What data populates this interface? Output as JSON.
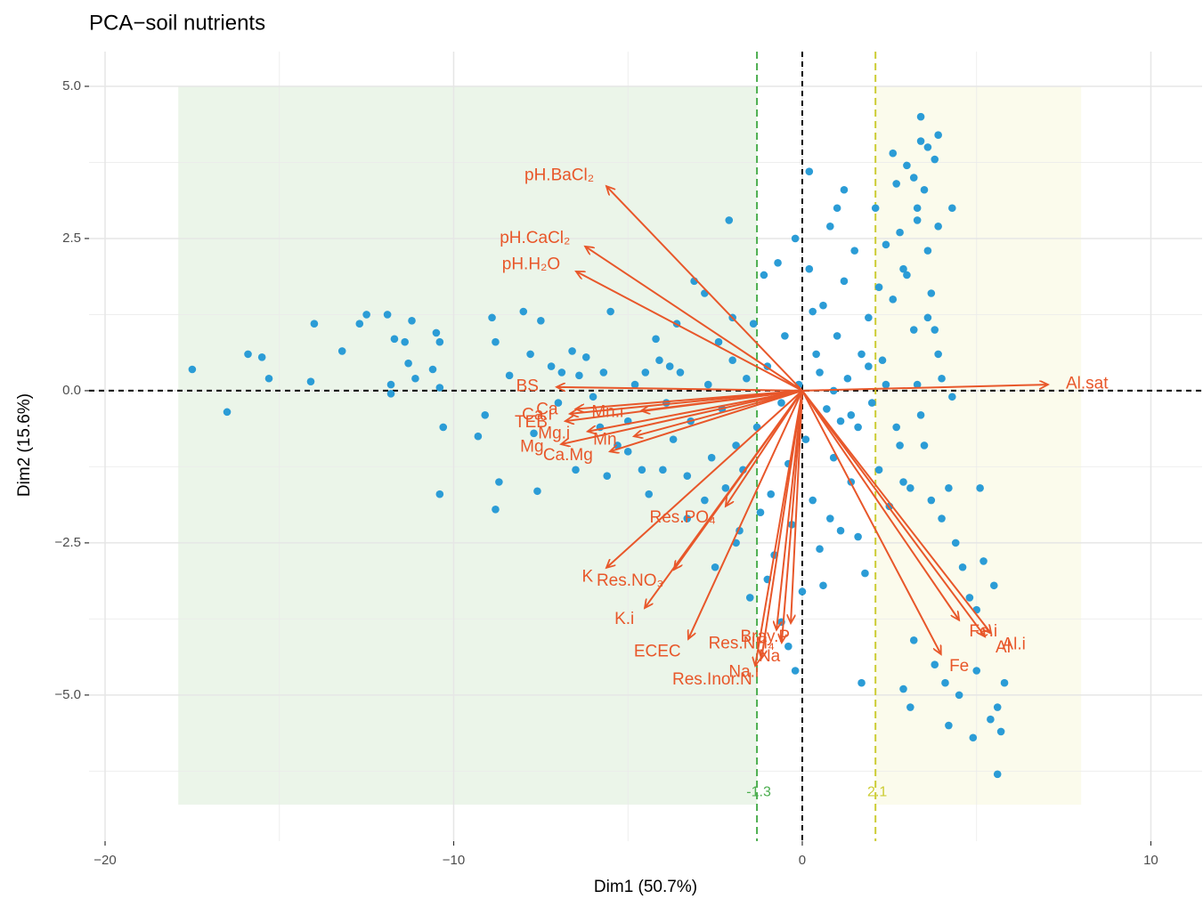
{
  "chart_data": {
    "type": "pca-biplot",
    "title": "PCA−soil nutrients",
    "x_label": "Dim1 (50.7%)",
    "y_label": "Dim2 (15.6%)",
    "xlim": [
      -20.46,
      11.47
    ],
    "ylim": [
      -7.4,
      5.57
    ],
    "xticks": [
      {
        "value": -20,
        "label": "−20"
      },
      {
        "value": -10,
        "label": "−10"
      },
      0,
      10
    ],
    "yticks": [
      {
        "value": 5,
        "label": "5.0"
      },
      {
        "value": 2.5,
        "label": "2.5"
      },
      {
        "value": 0,
        "label": "0.0"
      },
      {
        "value": -2.5,
        "label": "−2.5"
      },
      {
        "value": -5,
        "label": "−5.0"
      }
    ],
    "xminor": [
      -15,
      -5,
      5
    ],
    "yminor": [
      3.75,
      1.25,
      -1.25,
      -3.75,
      -6.25
    ],
    "grid": true,
    "regions": [
      {
        "xmin": -17.9,
        "xmax": -1.3,
        "ymin": -6.8,
        "ymax": 5.0,
        "color": "#ebf5e9"
      },
      {
        "xmin": 2.1,
        "xmax": 8.0,
        "ymin": -6.8,
        "ymax": 5.0,
        "color": "#fbfbec"
      }
    ],
    "vlines": [
      {
        "x": -1.3,
        "label": "-1.3",
        "color": "#4cae4f"
      },
      {
        "x": 2.1,
        "label": "2.1",
        "color": "#cccc33"
      }
    ],
    "points": {
      "color": "#2b9cd6",
      "x": [
        -17.5,
        -16.5,
        -15.9,
        -15.5,
        -15.3,
        -14.0,
        -14.1,
        -13.2,
        -12.7,
        -12.5,
        -11.9,
        -11.7,
        -11.4,
        -11.2,
        -11.1,
        -11.8,
        -11.8,
        -11.3,
        -10.6,
        -10.5,
        -10.4,
        -10.4,
        -10.3,
        -10.4,
        -9.3,
        -9.1,
        -8.8,
        -8.7,
        -8.8,
        -8.9,
        -8.4,
        -8.0,
        -7.8,
        -7.5,
        -7.6,
        -7.7,
        -7.2,
        -7.0,
        -6.9,
        -6.6,
        -6.4,
        -6.2,
        -6.0,
        -5.7,
        -5.5,
        -5.8,
        -5.3,
        -5.0,
        -5.0,
        -4.8,
        -4.5,
        -4.6,
        -4.4,
        -4.2,
        -4.1,
        -3.9,
        -3.7,
        -3.5,
        -3.3,
        -3.2,
        -3.1,
        -2.8,
        -2.7,
        -2.6,
        -2.4,
        -2.3,
        -2.2,
        -2.1,
        -2.0,
        -1.9,
        -1.8,
        -1.7,
        -1.6,
        -1.5,
        -1.4,
        -1.3,
        -1.2,
        -1.1,
        -1.0,
        -0.9,
        -0.8,
        -0.7,
        -0.6,
        -0.5,
        -0.4,
        -0.3,
        -0.2,
        -0.1,
        0.1,
        0.2,
        0.3,
        0.4,
        0.5,
        0.6,
        0.7,
        0.8,
        0.9,
        1.0,
        1.1,
        1.2,
        1.3,
        1.4,
        1.5,
        1.6,
        1.7,
        1.8,
        1.9,
        2.0,
        2.1,
        2.2,
        2.3,
        2.4,
        2.5,
        2.6,
        2.7,
        2.8,
        2.9,
        3.0,
        3.1,
        3.2,
        3.3,
        3.4,
        3.4,
        3.5,
        3.6,
        3.6,
        3.7,
        3.7,
        3.8,
        3.9,
        3.9,
        3.5,
        4.0,
        4.2,
        4.4,
        4.6,
        4.8,
        5.0,
        5.2,
        5.5,
        4.3,
        5.1,
        4.1,
        4.5,
        4.9,
        5.0,
        5.6,
        5.7,
        5.6,
        5.8,
        3.8,
        3.2,
        2.9,
        3.1,
        1.7,
        5.4,
        4.2,
        2.9,
        1.4,
        0.6,
        -0.6,
        -0.4,
        0.0,
        -0.2,
        0.8,
        1.6,
        -3.3,
        -1.9,
        -2.5,
        -1.0,
        -2.0,
        -3.8,
        -6.5,
        -5.6,
        -4.0,
        -2.8,
        -3.6,
        0.2,
        1.2,
        0.3,
        2.2,
        1.0,
        2.6,
        3.2,
        3.3,
        2.8,
        3.0,
        3.6,
        3.9,
        3.8,
        4.0,
        4.3,
        3.3,
        2.4,
        1.9,
        0.9,
        0.5,
        1.1,
        2.7,
        3.4
      ],
      "y": [
        0.35,
        -0.35,
        0.6,
        0.55,
        0.2,
        1.1,
        0.15,
        0.65,
        1.1,
        1.25,
        1.25,
        0.85,
        0.8,
        1.15,
        0.2,
        0.1,
        -0.05,
        0.45,
        0.35,
        0.95,
        0.8,
        0.05,
        -0.6,
        -1.7,
        -0.75,
        -0.4,
        -1.95,
        -1.5,
        0.8,
        1.2,
        0.25,
        1.3,
        0.6,
        1.15,
        -1.65,
        -0.7,
        0.4,
        -0.2,
        0.3,
        0.65,
        0.25,
        0.55,
        -0.1,
        0.3,
        1.3,
        -0.6,
        -0.9,
        -1.0,
        -0.5,
        0.1,
        0.3,
        -1.3,
        -1.7,
        0.85,
        0.5,
        -0.2,
        -0.8,
        0.3,
        -1.4,
        -0.5,
        1.8,
        1.6,
        0.1,
        -1.1,
        0.8,
        -0.3,
        -1.6,
        2.8,
        0.5,
        -0.9,
        -2.3,
        -1.3,
        0.2,
        -3.4,
        1.1,
        -0.6,
        -2.0,
        1.9,
        0.4,
        -1.7,
        -2.7,
        2.1,
        -0.2,
        0.9,
        -1.2,
        -2.2,
        2.5,
        0.1,
        -0.8,
        2.0,
        -1.8,
        0.6,
        -2.6,
        1.4,
        -0.3,
        2.7,
        -1.1,
        0.9,
        -2.3,
        1.8,
        0.2,
        -1.5,
        2.3,
        -0.6,
        0.6,
        -3.0,
        1.2,
        -0.2,
        3.0,
        -1.3,
        0.5,
        2.4,
        -1.9,
        1.5,
        3.4,
        -0.9,
        2.0,
        3.7,
        -1.6,
        1.0,
        2.8,
        4.1,
        4.5,
        3.3,
        4.0,
        2.3,
        1.6,
        -1.8,
        3.8,
        4.2,
        2.7,
        -0.9,
        -2.1,
        -1.6,
        -2.5,
        -2.9,
        -3.4,
        -3.6,
        -2.8,
        -3.2,
        3.0,
        -1.6,
        -4.8,
        -5.0,
        -5.7,
        -4.6,
        -5.2,
        -5.6,
        -6.3,
        -4.8,
        -4.5,
        -4.1,
        -4.9,
        -5.2,
        -4.8,
        -5.4,
        -5.5,
        -1.5,
        -0.4,
        -3.2,
        -3.8,
        -4.2,
        -3.3,
        -4.6,
        -2.1,
        -2.4,
        -2.1,
        -2.5,
        -2.9,
        -3.1,
        1.2,
        0.4,
        -1.3,
        -1.4,
        -1.3,
        -1.8,
        1.1,
        3.6,
        3.3,
        1.3,
        1.7,
        3.0,
        3.9,
        3.5,
        3.0,
        2.6,
        1.9,
        1.2,
        0.6,
        1.0,
        0.2,
        -0.1,
        0.1,
        0.1,
        0.4,
        0.0,
        0.3,
        -0.5,
        -0.6,
        -0.4
      ]
    },
    "arrows": {
      "color": "#e8572a",
      "names": [
        "pH.BaCl₂",
        "pH.CaCl₂",
        "pH.H₂O",
        "BS",
        "Ca",
        "Ca.i",
        "TEB",
        "Mg.i",
        "Mg",
        "Mn.i",
        "Mn",
        "Ca.Mg",
        "Res.PO₄",
        "K",
        "Res.NO₃",
        "K.i",
        "ECEC",
        "Res.Inor.N",
        "Na.i",
        "Na",
        "Res.NH₄",
        "Bray.P",
        "Fe.i",
        "Fe",
        "Al.i",
        "Al",
        "Al.sat"
      ],
      "x": [
        -5.62,
        -6.23,
        -6.49,
        -7.05,
        -6.5,
        -6.67,
        -6.8,
        -6.16,
        -6.92,
        -4.62,
        -4.83,
        -5.52,
        -2.2,
        -5.62,
        -3.68,
        -4.52,
        -3.27,
        -1.35,
        -1.17,
        -0.59,
        -0.74,
        -0.33,
        4.5,
        3.98,
        5.42,
        5.24,
        7.05
      ],
      "y": [
        3.36,
        2.37,
        1.96,
        0.06,
        -0.3,
        -0.38,
        -0.5,
        -0.67,
        -0.88,
        -0.33,
        -0.75,
        -1.0,
        -1.9,
        -2.91,
        -2.94,
        -3.57,
        -4.08,
        -4.52,
        -4.4,
        -4.14,
        -3.93,
        -3.82,
        -3.77,
        -4.33,
        -3.99,
        -4.04,
        0.1
      ]
    }
  }
}
